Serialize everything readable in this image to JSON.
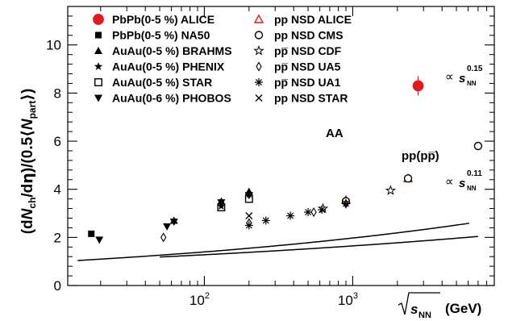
{
  "chart_data": {
    "type": "scatter",
    "title": "",
    "xlabel": {
      "radical": "√",
      "s": "s",
      "sub": "NN",
      "unit": "(GeV)"
    },
    "ylabel": {
      "text": "(dN_ch/dη)/(0.5⟨N_part⟩)"
    },
    "x_scale": "log",
    "xlim": [
      12,
      9000
    ],
    "ylim": [
      0,
      11.6
    ],
    "yticks": [
      0,
      2,
      4,
      6,
      8,
      10
    ],
    "xticks": [
      {
        "value": 100,
        "base": "10",
        "exp": "2"
      },
      {
        "value": 1000,
        "base": "10",
        "exp": "3"
      }
    ],
    "grid": false,
    "legend_position": "top-left",
    "colors": {
      "alice": "#e31a1c",
      "black": "#000000"
    },
    "legend": [
      {
        "marker": "filled-circle",
        "color": "#e31a1c",
        "label": "PbPb(0-5 %) ALICE"
      },
      {
        "marker": "filled-square",
        "color": "#000000",
        "label": "PbPb(0-5 %) NA50"
      },
      {
        "marker": "filled-triangle-up",
        "color": "#000000",
        "label": "AuAu(0-5 %) BRAHMS"
      },
      {
        "marker": "filled-star",
        "color": "#000000",
        "label": "AuAu(0-5 %) PHENIX"
      },
      {
        "marker": "open-square",
        "color": "#000000",
        "label": "AuAu(0-5 %) STAR"
      },
      {
        "marker": "filled-triangle-down",
        "color": "#000000",
        "label": "AuAu(0-6 %) PHOBOS"
      },
      {
        "marker": "open-triangle-up",
        "color": "#e31a1c",
        "label": "pp NSD  ALICE"
      },
      {
        "marker": "open-circle",
        "color": "#000000",
        "label": "pp NSD CMS"
      },
      {
        "marker": "open-star",
        "color": "#000000",
        "label": "pp̅ NSD CDF"
      },
      {
        "marker": "open-diamond",
        "color": "#000000",
        "label": "pp̅ NSD UA5"
      },
      {
        "marker": "asterisk",
        "color": "#000000",
        "label": "pp̅ NSD UA1"
      },
      {
        "marker": "cross",
        "color": "#000000",
        "label": "pp NSD STAR"
      }
    ],
    "curves": [
      {
        "name": "AA",
        "label": "AA",
        "a": 0.7,
        "b": 0.15,
        "x_range": [
          14,
          6100
        ]
      },
      {
        "name": "pp(pp̅)",
        "label": "pp(pp̅)",
        "a": 0.77,
        "b": 0.11,
        "x_range": [
          50,
          7000
        ]
      }
    ],
    "fit_annotations": [
      {
        "prop": "∝",
        "s": "s",
        "sub": "NN",
        "exp": "0.15"
      },
      {
        "prop": "∝",
        "s": "s",
        "sub": "NN",
        "exp": "0.11"
      }
    ],
    "series": [
      {
        "name": "PbPb(0-5 %) ALICE",
        "marker": "filled-circle",
        "color": "#e31a1c",
        "points": [
          {
            "x": 2760,
            "y": 8.3,
            "err": 0.4
          }
        ]
      },
      {
        "name": "PbPb(0-5 %) NA50",
        "marker": "filled-square",
        "color": "#000000",
        "points": [
          {
            "x": 17.3,
            "y": 2.15
          }
        ]
      },
      {
        "name": "AuAu(0-5 %) BRAHMS",
        "marker": "filled-triangle-up",
        "color": "#000000",
        "points": [
          {
            "x": 62.4,
            "y": 2.7
          },
          {
            "x": 130,
            "y": 3.5
          },
          {
            "x": 200,
            "y": 3.9
          }
        ]
      },
      {
        "name": "AuAu(0-5 %) PHENIX",
        "marker": "filled-star",
        "color": "#000000",
        "points": [
          {
            "x": 130,
            "y": 3.3
          },
          {
            "x": 200,
            "y": 3.8
          }
        ]
      },
      {
        "name": "AuAu(0-5 %) STAR",
        "marker": "open-square",
        "color": "#000000",
        "points": [
          {
            "x": 130,
            "y": 3.25
          },
          {
            "x": 200,
            "y": 3.6
          }
        ]
      },
      {
        "name": "AuAu(0-6 %) PHOBOS",
        "marker": "filled-triangle-down",
        "color": "#000000",
        "points": [
          {
            "x": 19.6,
            "y": 1.9
          },
          {
            "x": 56,
            "y": 2.45
          },
          {
            "x": 62.4,
            "y": 2.65
          },
          {
            "x": 130,
            "y": 3.45
          },
          {
            "x": 200,
            "y": 3.75
          }
        ]
      },
      {
        "name": "pp NSD  ALICE",
        "marker": "open-triangle-up",
        "color": "#e31a1c",
        "points": [
          {
            "x": 900,
            "y": 3.55
          },
          {
            "x": 2360,
            "y": 4.45
          }
        ]
      },
      {
        "name": "pp NSD CMS",
        "marker": "open-circle",
        "color": "#000000",
        "points": [
          {
            "x": 900,
            "y": 3.5
          },
          {
            "x": 2360,
            "y": 4.45
          },
          {
            "x": 7000,
            "y": 5.8
          }
        ]
      },
      {
        "name": "pp̅ NSD CDF",
        "marker": "open-star",
        "color": "#000000",
        "points": [
          {
            "x": 630,
            "y": 3.2
          },
          {
            "x": 1800,
            "y": 3.95
          }
        ]
      },
      {
        "name": "pp̅ NSD UA5",
        "marker": "open-diamond",
        "color": "#000000",
        "points": [
          {
            "x": 53,
            "y": 2.0
          },
          {
            "x": 200,
            "y": 2.6
          },
          {
            "x": 546,
            "y": 3.05
          },
          {
            "x": 900,
            "y": 3.4
          }
        ]
      },
      {
        "name": "pp̅ NSD UA1",
        "marker": "asterisk",
        "color": "#000000",
        "points": [
          {
            "x": 200,
            "y": 2.5
          },
          {
            "x": 260,
            "y": 2.7
          },
          {
            "x": 380,
            "y": 2.9
          },
          {
            "x": 500,
            "y": 3.05
          },
          {
            "x": 620,
            "y": 3.15
          },
          {
            "x": 900,
            "y": 3.4
          }
        ]
      },
      {
        "name": "pp NSD STAR",
        "marker": "cross",
        "color": "#000000",
        "points": [
          {
            "x": 200,
            "y": 2.9
          }
        ]
      }
    ]
  }
}
